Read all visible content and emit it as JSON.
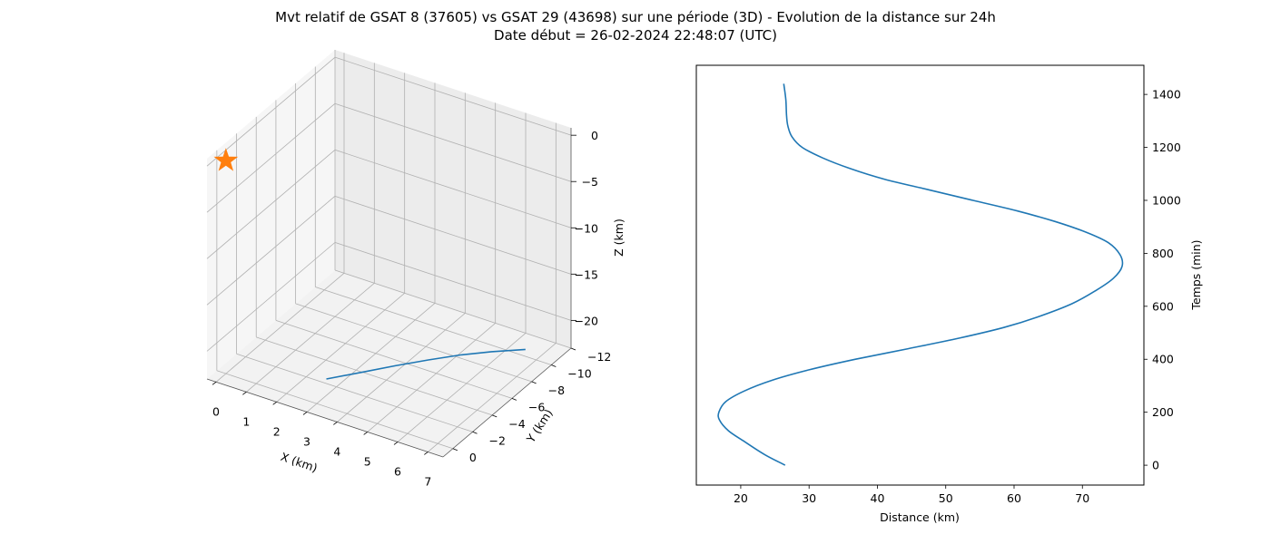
{
  "title_line1": "Mvt relatif de GSAT 8 (37605) vs GSAT 29 (43698) sur une période (3D) - Evolution de la distance sur 24h",
  "title_line2": "Date début = 26-02-2024 22:48:07 (UTC)",
  "colors": {
    "series": "#1f77b4",
    "marker": "#ff7f0e",
    "grid": "#b0b0b0",
    "pane": "#f2f2f2"
  },
  "chart_data": [
    {
      "type": "line3d",
      "xlabel": "X (km)",
      "ylabel": "Y (km)",
      "zlabel": "Z (km)",
      "xlim": [
        -0.3,
        7.5
      ],
      "ylim": [
        -12,
        1
      ],
      "zlim": [
        -23,
        0.8
      ],
      "xticks": [
        "0",
        "1",
        "2",
        "3",
        "4",
        "5",
        "6",
        "7"
      ],
      "yticks": [
        "0",
        "−2",
        "−4",
        "−6",
        "−8",
        "−10",
        "−12"
      ],
      "zticks": [
        "0",
        "−5",
        "−10",
        "−15",
        "−20"
      ],
      "series": {
        "x": [
          2.8,
          3.5,
          4.2,
          4.9,
          5.6,
          6.3,
          7.1
        ],
        "y": [
          -1.6,
          -3.0,
          -4.3,
          -5.5,
          -6.6,
          -7.6,
          -8.6
        ],
        "z": [
          -22.0,
          -21.8,
          -21.5,
          -21.2,
          -20.9,
          -20.7,
          -20.5
        ]
      },
      "marker": {
        "symbol": "star",
        "x": 0,
        "y": 0,
        "z": 0
      }
    },
    {
      "type": "line",
      "xlabel": "Distance (km)",
      "ylabel": "Temps (min)",
      "xlim": [
        13.5,
        79
      ],
      "ylim": [
        -75,
        1510
      ],
      "xticks": [
        "20",
        "30",
        "40",
        "50",
        "60",
        "70"
      ],
      "yticks": [
        "0",
        "200",
        "400",
        "600",
        "800",
        "1000",
        "1200",
        "1400"
      ],
      "series": {
        "x": [
          26.5,
          23.5,
          20.5,
          18.2,
          16.9,
          16.8,
          17.8,
          20.5,
          24.5,
          30.0,
          36.8,
          44.5,
          52.0,
          58.5,
          63.5,
          68.5,
          72.0,
          74.5,
          75.8,
          75.5,
          73.8,
          70.5,
          66.0,
          60.5,
          54.0,
          47.5,
          41.0,
          36.0,
          32.0,
          29.0,
          27.5,
          26.9,
          26.7,
          26.6,
          26.3
        ],
        "y": [
          0,
          40,
          90,
          130,
          170,
          200,
          240,
          280,
          320,
          360,
          400,
          440,
          480,
          520,
          560,
          610,
          660,
          705,
          750,
          795,
          840,
          880,
          920,
          960,
          1000,
          1040,
          1080,
          1120,
          1160,
          1200,
          1240,
          1280,
          1320,
          1380,
          1440
        ]
      }
    }
  ]
}
